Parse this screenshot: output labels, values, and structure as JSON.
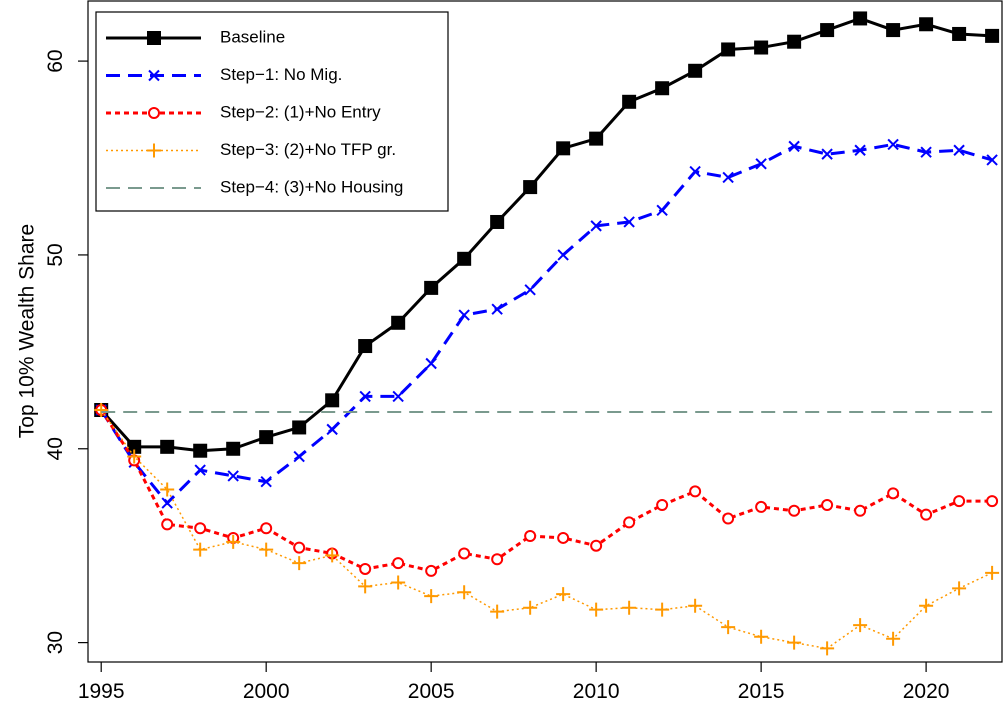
{
  "chart_data": {
    "type": "line",
    "y_label": "Top 10% Wealth Share",
    "x": [
      1995,
      1996,
      1997,
      1998,
      1999,
      2000,
      2001,
      2002,
      2003,
      2004,
      2005,
      2006,
      2007,
      2008,
      2009,
      2010,
      2011,
      2012,
      2013,
      2014,
      2015,
      2016,
      2017,
      2018,
      2019,
      2020,
      2021,
      2022
    ],
    "series": [
      {
        "name": "Baseline",
        "color": "#000000",
        "marker": "square",
        "dash": "solid",
        "values": [
          42.0,
          40.1,
          40.1,
          39.9,
          40.0,
          40.6,
          41.1,
          42.5,
          45.3,
          46.5,
          48.3,
          49.8,
          51.7,
          53.5,
          55.5,
          56.0,
          57.9,
          58.6,
          59.5,
          60.6,
          60.7,
          61.0,
          61.6,
          62.2,
          61.6,
          61.9,
          61.4,
          61.3
        ]
      },
      {
        "name": "Step−1: No Mig.",
        "color": "#0000ff",
        "marker": "x",
        "dash": "dash",
        "values": [
          42.0,
          39.3,
          37.2,
          38.9,
          38.6,
          38.3,
          39.6,
          41.0,
          42.7,
          42.7,
          44.4,
          46.9,
          47.2,
          48.2,
          50.0,
          51.5,
          51.7,
          52.3,
          54.3,
          54.0,
          54.7,
          55.6,
          55.2,
          55.4,
          55.7,
          55.3,
          55.4,
          54.9
        ]
      },
      {
        "name": "Step−2: (1)+No Entry",
        "color": "#ff0000",
        "marker": "circle",
        "dash": "dot",
        "values": [
          42.0,
          39.4,
          36.1,
          35.9,
          35.4,
          35.9,
          34.9,
          34.6,
          33.8,
          34.1,
          33.7,
          34.6,
          34.3,
          35.5,
          35.4,
          35.0,
          36.2,
          37.1,
          37.8,
          36.4,
          37.0,
          36.8,
          37.1,
          36.8,
          37.7,
          36.6,
          37.3,
          37.3
        ]
      },
      {
        "name": "Step−3: (2)+No TFP gr.",
        "color": "#ff9900",
        "marker": "plus",
        "dash": "dotted",
        "values": [
          42.0,
          39.6,
          37.9,
          34.8,
          35.2,
          34.8,
          34.1,
          34.5,
          32.9,
          33.1,
          32.4,
          32.6,
          31.6,
          31.8,
          32.5,
          31.7,
          31.8,
          31.7,
          31.9,
          30.8,
          30.3,
          30.0,
          29.7,
          30.9,
          30.2,
          31.9,
          32.8,
          33.6
        ]
      },
      {
        "name": "Step−4: (3)+No Housing",
        "color": "#7a9a8e",
        "marker": "none",
        "dash": "longdash",
        "values": [
          41.9,
          41.9,
          41.9,
          41.9,
          41.9,
          41.9,
          41.9,
          41.9,
          41.9,
          41.9,
          41.9,
          41.9,
          41.9,
          41.9,
          41.9,
          41.9,
          41.9,
          41.9,
          41.9,
          41.9,
          41.9,
          41.9,
          41.9,
          41.9,
          41.9,
          41.9,
          41.9,
          41.9
        ]
      }
    ],
    "xlim": [
      1994.6,
      2022.3
    ],
    "xticks": [
      1995,
      2000,
      2005,
      2010,
      2015,
      2020
    ],
    "ylim": [
      29,
      63.1
    ],
    "yticks": [
      30,
      40,
      50,
      60
    ],
    "legend": "upper-left"
  }
}
